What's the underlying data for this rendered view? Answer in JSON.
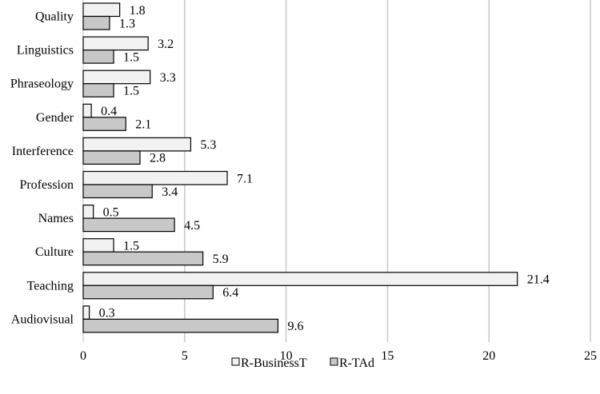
{
  "chart_data": {
    "type": "bar",
    "orientation": "horizontal",
    "title": "",
    "xlabel": "",
    "ylabel": "",
    "categories": [
      "Quality",
      "Linguistics",
      "Phraseology",
      "Gender",
      "Interference",
      "Profession",
      "Names",
      "Culture",
      "Teaching",
      "Audiovisual"
    ],
    "series": [
      {
        "name": "R-BusinessT",
        "values": [
          1.8,
          3.2,
          3.3,
          0.4,
          5.3,
          7.1,
          0.5,
          1.5,
          21.4,
          0.3
        ],
        "labels": [
          "1.8",
          "3.2",
          "3.3",
          "0.4",
          "5.3",
          "7.1",
          "0.5",
          "1.5",
          "21.4",
          "0.3"
        ],
        "color": "#f2f2f2"
      },
      {
        "name": "R-TAd",
        "values": [
          1.3,
          1.5,
          1.5,
          2.1,
          2.8,
          3.4,
          4.5,
          5.9,
          6.4,
          9.6
        ],
        "labels": [
          "1.3",
          "1.5",
          "1.5",
          "2.1",
          "2.8",
          "3.4",
          "4.5",
          "5.9",
          "6.4",
          "9.6"
        ],
        "color": "#c8c8c8"
      }
    ],
    "xlim": [
      0,
      25
    ],
    "xticks": [
      "0",
      "5",
      "10",
      "15",
      "20",
      "25"
    ],
    "grid": true,
    "legend_position": "bottom",
    "bar_outline_color": "#000000",
    "gridline_color": "#c8c8c8"
  }
}
